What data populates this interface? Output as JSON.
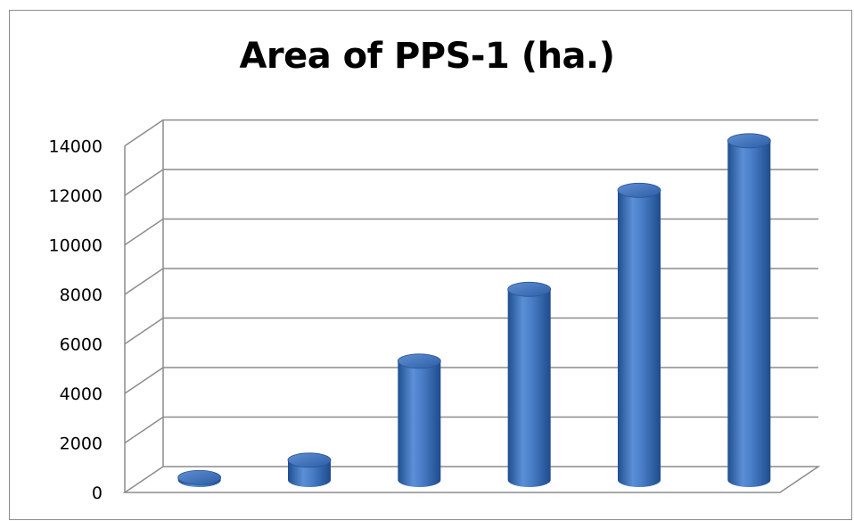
{
  "chart_data": {
    "type": "bar",
    "style": "3d-cylinder",
    "title": "Area of PPS-1 (ha.)",
    "xlabel": "",
    "ylabel": "",
    "categories": [
      "",
      "",
      "",
      "",
      "",
      ""
    ],
    "values": [
      100,
      800,
      4800,
      7700,
      11700,
      13700
    ],
    "ylim": [
      0,
      14000
    ],
    "yticks": [
      0,
      2000,
      4000,
      6000,
      8000,
      10000,
      12000,
      14000
    ],
    "grid": true,
    "legend": "none",
    "bar_color": "#3f72bd",
    "gridline_color": "#8c8c8c"
  }
}
